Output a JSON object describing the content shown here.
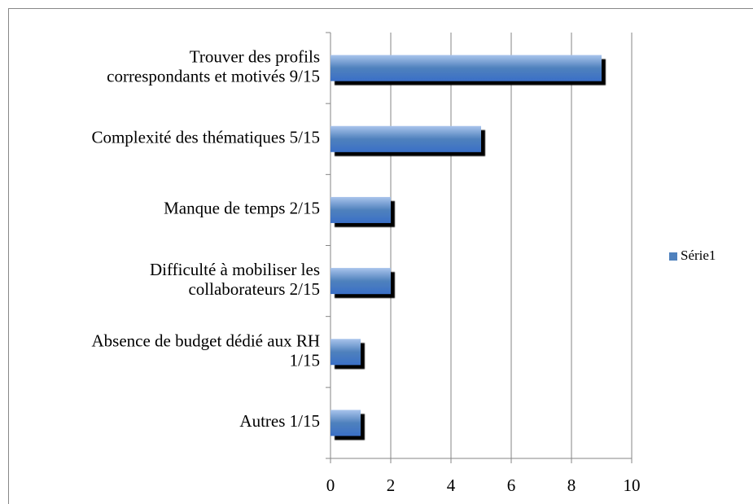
{
  "chart_data": {
    "type": "bar",
    "orientation": "horizontal",
    "categories": [
      "Trouver des profils\ncorrespondants et motivés 9/15",
      "Complexité des thématiques 5/15",
      "Manque de temps 2/15",
      "Difficulté à mobiliser les\ncollaborateurs 2/15",
      "Absence de budget dédié aux RH\n1/15",
      "Autres 1/15"
    ],
    "series": [
      {
        "name": "Série1",
        "color": "#4f81bd",
        "values": [
          9,
          5,
          2,
          2,
          1,
          1
        ]
      }
    ],
    "xlim": [
      0,
      10
    ],
    "xticks": [
      0,
      2,
      4,
      6,
      8,
      10
    ],
    "grid": true,
    "legend": "right"
  }
}
